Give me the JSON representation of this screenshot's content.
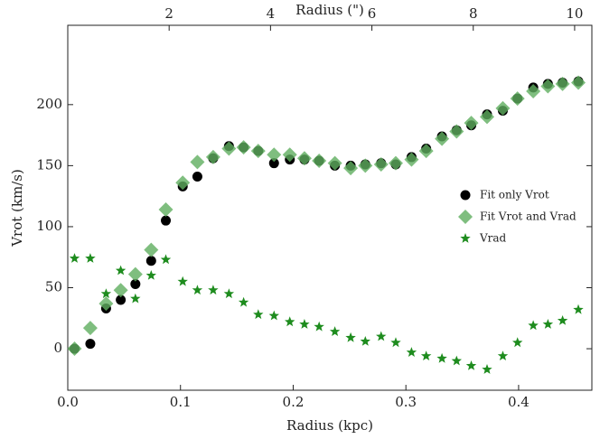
{
  "chart_data": {
    "type": "scatter",
    "x_label": "Radius (kpc)",
    "x2_label": "Radius (\")",
    "y_label": "Vrot (km/s)",
    "x": [
      0.006,
      0.02,
      0.034,
      0.047,
      0.06,
      0.074,
      0.087,
      0.102,
      0.115,
      0.129,
      0.143,
      0.156,
      0.169,
      0.183,
      0.197,
      0.21,
      0.223,
      0.237,
      0.251,
      0.264,
      0.278,
      0.291,
      0.305,
      0.318,
      0.332,
      0.345,
      0.358,
      0.372,
      0.386,
      0.399,
      0.413,
      0.426,
      0.439,
      0.453
    ],
    "series": [
      {
        "name": "Fit only Vrot",
        "color": "#000000",
        "marker": "circle",
        "values": [
          0,
          4,
          33,
          40,
          53,
          72,
          105,
          133,
          141,
          156,
          166,
          165,
          162,
          152,
          155,
          155,
          154,
          150,
          150,
          151,
          152,
          151,
          157,
          164,
          174,
          179,
          183,
          192,
          195,
          205,
          214,
          217,
          218,
          219
        ]
      },
      {
        "name": "Fit Vrot and Vrad",
        "color": "#5fae5f",
        "marker": "diamond",
        "values": [
          0,
          17,
          37,
          48,
          61,
          81,
          114,
          136,
          153,
          157,
          164,
          165,
          162,
          159,
          159,
          156,
          154,
          152,
          148,
          150,
          151,
          152,
          155,
          162,
          172,
          178,
          185,
          190,
          197,
          205,
          211,
          215,
          217,
          218
        ]
      },
      {
        "name": "Vrad",
        "color": "#1e8c1e",
        "marker": "star",
        "values": [
          74,
          74,
          45,
          64,
          41,
          60,
          73,
          55,
          48,
          48,
          45,
          38,
          28,
          27,
          22,
          20,
          18,
          14,
          9,
          6,
          10,
          5,
          -3,
          -6,
          -8,
          -10,
          -14,
          -17,
          -6,
          5,
          19,
          20,
          23,
          32
        ]
      }
    ],
    "xlim": [
      0,
      0.465
    ],
    "xticks": [
      {
        "value": 0,
        "label": "0.0"
      },
      0.1,
      0.2,
      0.3,
      0.4
    ],
    "x2lim": [
      0,
      10.34
    ],
    "x2ticks": [
      2,
      4,
      6,
      8,
      10
    ],
    "ylim": [
      -34,
      265
    ],
    "yticks": [
      0,
      50,
      100,
      150,
      200
    ],
    "grid": false,
    "legend": "center right"
  }
}
